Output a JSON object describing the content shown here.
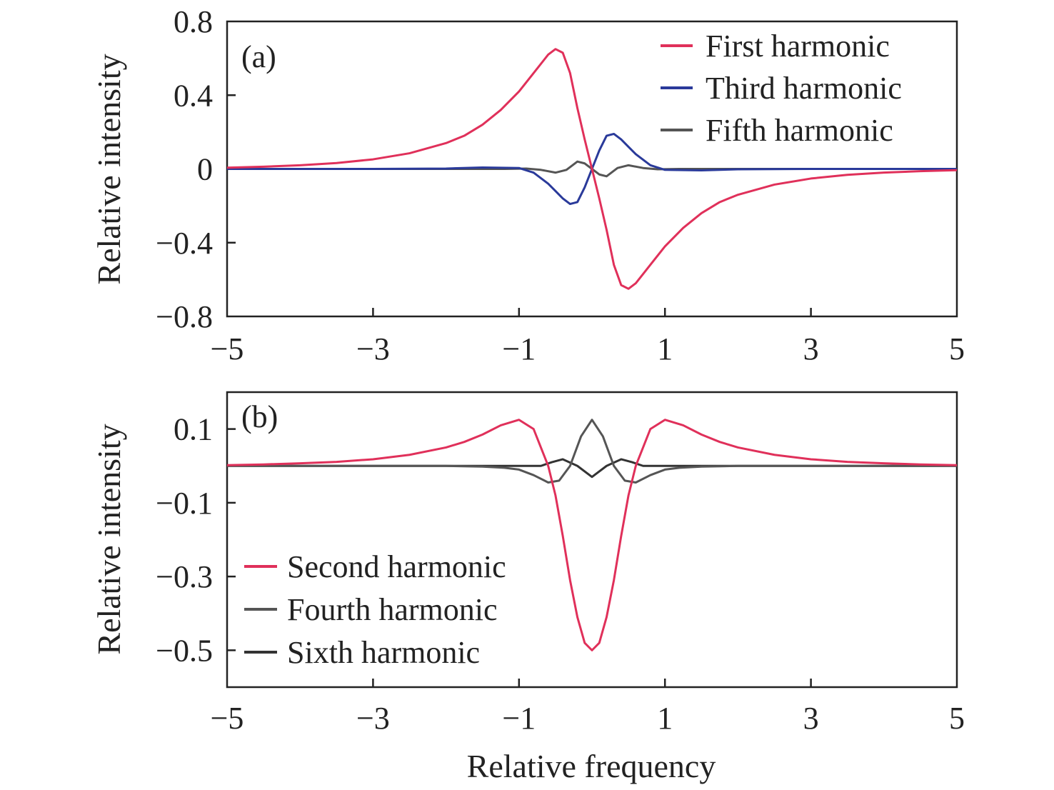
{
  "figure": {
    "xlabel": "Relative frequency",
    "colors": {
      "red": "#e0305a",
      "blue": "#2a3a9a",
      "gray": "#555555",
      "dark": "#333333",
      "axis": "#222222"
    }
  },
  "chart_data": [
    {
      "type": "line",
      "panel_label": "(a)",
      "title": "",
      "xlabel": "Relative frequency",
      "ylabel": "Relative intensity",
      "xlim": [
        -5,
        5
      ],
      "ylim": [
        -0.8,
        0.8
      ],
      "xticks": [
        -5,
        -3,
        -1,
        1,
        3,
        5
      ],
      "xtick_labels": [
        "−5",
        "−3",
        "−1",
        "1",
        "3",
        "5"
      ],
      "yticks": [
        0.8,
        0.4,
        0,
        -0.4,
        -0.8
      ],
      "ytick_labels": [
        "0.8",
        "0.4",
        "0",
        "−0.4",
        "−0.8"
      ],
      "grid": false,
      "legend_position": "top-right",
      "series": [
        {
          "name": "First harmonic",
          "color": "#e0305a",
          "x": [
            -5,
            -4.5,
            -4,
            -3.5,
            -3,
            -2.5,
            -2,
            -1.75,
            -1.5,
            -1.25,
            -1,
            -0.8,
            -0.6,
            -0.5,
            -0.4,
            -0.3,
            -0.2,
            -0.1,
            0,
            0.1,
            0.2,
            0.3,
            0.4,
            0.5,
            0.6,
            0.8,
            1,
            1.25,
            1.5,
            1.75,
            2,
            2.5,
            3,
            3.5,
            4,
            4.5,
            5
          ],
          "y": [
            0.007,
            0.012,
            0.02,
            0.032,
            0.052,
            0.085,
            0.14,
            0.18,
            0.24,
            0.32,
            0.42,
            0.52,
            0.62,
            0.65,
            0.63,
            0.52,
            0.33,
            0.16,
            0,
            -0.16,
            -0.33,
            -0.52,
            -0.63,
            -0.65,
            -0.62,
            -0.52,
            -0.42,
            -0.32,
            -0.24,
            -0.18,
            -0.14,
            -0.085,
            -0.052,
            -0.032,
            -0.02,
            -0.012,
            -0.007
          ]
        },
        {
          "name": "Third harmonic",
          "color": "#2a3a9a",
          "x": [
            -5,
            -3,
            -2,
            -1.5,
            -1,
            -0.8,
            -0.6,
            -0.5,
            -0.4,
            -0.3,
            -0.2,
            -0.1,
            0,
            0.1,
            0.2,
            0.3,
            0.4,
            0.5,
            0.6,
            0.8,
            1,
            1.5,
            2,
            3,
            5
          ],
          "y": [
            0,
            0,
            0.002,
            0.008,
            0.005,
            -0.02,
            -0.08,
            -0.12,
            -0.16,
            -0.19,
            -0.18,
            -0.1,
            0,
            0.1,
            0.18,
            0.19,
            0.16,
            0.12,
            0.08,
            0.02,
            -0.005,
            -0.008,
            -0.002,
            0,
            0
          ]
        },
        {
          "name": "Fifth harmonic",
          "color": "#555555",
          "x": [
            -5,
            -2,
            -1.2,
            -0.9,
            -0.7,
            -0.5,
            -0.35,
            -0.2,
            -0.1,
            0,
            0.1,
            0.2,
            0.35,
            0.5,
            0.7,
            0.9,
            1.2,
            2,
            5
          ],
          "y": [
            0,
            0,
            0,
            0.002,
            -0.005,
            -0.02,
            -0.005,
            0.04,
            0.03,
            0,
            -0.03,
            -0.04,
            0.005,
            0.02,
            0.005,
            -0.002,
            0,
            0,
            0
          ]
        }
      ]
    },
    {
      "type": "line",
      "panel_label": "(b)",
      "title": "",
      "xlabel": "Relative frequency",
      "ylabel": "Relative intensity",
      "xlim": [
        -5,
        5
      ],
      "ylim": [
        -0.6,
        0.2
      ],
      "xticks": [
        -5,
        -3,
        -1,
        1,
        3,
        5
      ],
      "xtick_labels": [
        "−5",
        "−3",
        "−1",
        "1",
        "3",
        "5"
      ],
      "yticks": [
        0.1,
        -0.1,
        -0.3,
        -0.5
      ],
      "ytick_labels": [
        "0.1",
        "−0.1",
        "−0.3",
        "−0.5"
      ],
      "grid": false,
      "legend_position": "bottom-left",
      "series": [
        {
          "name": "Second harmonic",
          "color": "#e0305a",
          "x": [
            -5,
            -4.5,
            -4,
            -3.5,
            -3,
            -2.5,
            -2,
            -1.75,
            -1.5,
            -1.25,
            -1,
            -0.8,
            -0.6,
            -0.5,
            -0.4,
            -0.3,
            -0.2,
            -0.1,
            0,
            0.1,
            0.2,
            0.3,
            0.4,
            0.5,
            0.6,
            0.8,
            1,
            1.25,
            1.5,
            1.75,
            2,
            2.5,
            3,
            3.5,
            4,
            4.5,
            5
          ],
          "y": [
            0.002,
            0.004,
            0.007,
            0.011,
            0.018,
            0.03,
            0.05,
            0.065,
            0.085,
            0.11,
            0.125,
            0.1,
            0.0,
            -0.08,
            -0.19,
            -0.31,
            -0.41,
            -0.48,
            -0.5,
            -0.48,
            -0.41,
            -0.31,
            -0.19,
            -0.08,
            0.0,
            0.1,
            0.125,
            0.11,
            0.085,
            0.065,
            0.05,
            0.03,
            0.018,
            0.011,
            0.007,
            0.004,
            0.002
          ]
        },
        {
          "name": "Fourth harmonic",
          "color": "#555555",
          "x": [
            -5,
            -2,
            -1.5,
            -1.2,
            -1,
            -0.8,
            -0.6,
            -0.45,
            -0.3,
            -0.15,
            0,
            0.15,
            0.3,
            0.45,
            0.6,
            0.8,
            1,
            1.2,
            1.5,
            2,
            5
          ],
          "y": [
            0,
            0,
            -0.002,
            -0.005,
            -0.01,
            -0.025,
            -0.045,
            -0.04,
            0.0,
            0.08,
            0.125,
            0.08,
            0.0,
            -0.04,
            -0.045,
            -0.025,
            -0.01,
            -0.005,
            -0.002,
            0,
            0
          ]
        },
        {
          "name": "Sixth harmonic",
          "color": "#333333",
          "x": [
            -5,
            -2,
            -1.2,
            -0.9,
            -0.7,
            -0.55,
            -0.4,
            -0.2,
            0,
            0.2,
            0.4,
            0.55,
            0.7,
            0.9,
            1.2,
            2,
            5
          ],
          "y": [
            0,
            0,
            0,
            0.0,
            0.0,
            0.01,
            0.018,
            0.0,
            -0.03,
            0.0,
            0.018,
            0.01,
            0.0,
            0.0,
            0,
            0,
            0
          ]
        }
      ]
    }
  ]
}
